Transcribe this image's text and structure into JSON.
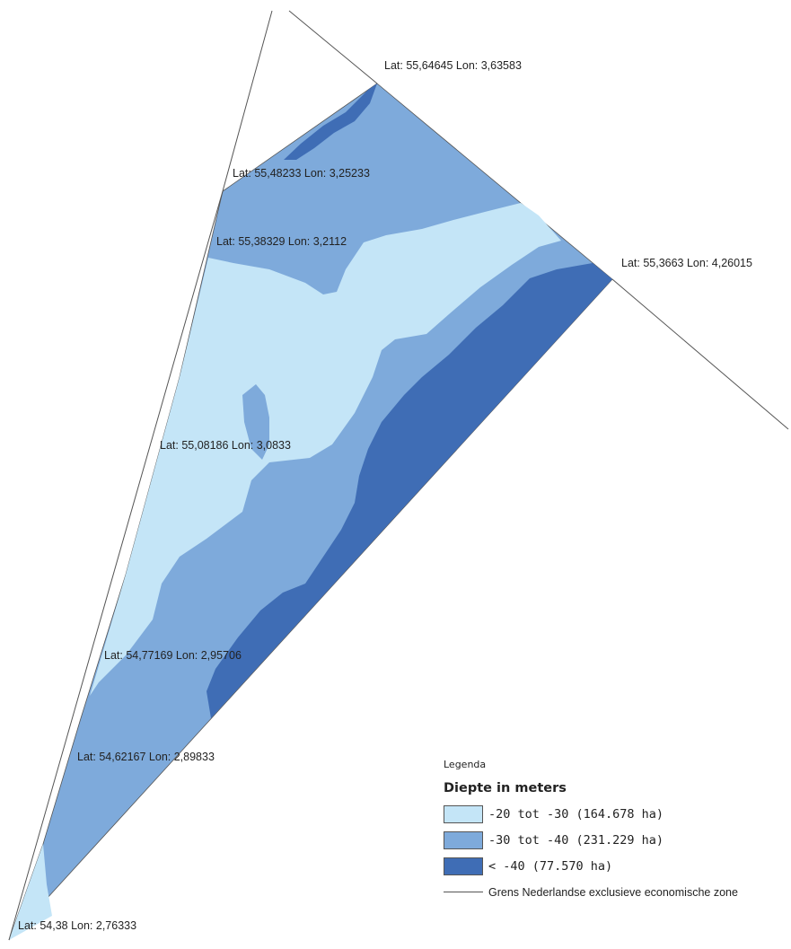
{
  "colors": {
    "class_1": "#c4e5f7",
    "class_2": "#7eaadb",
    "class_3": "#3f6db5",
    "boundary": "#555555"
  },
  "coordinates": [
    {
      "id": "c1",
      "text": "Lat: 55,64645 Lon: 3,63583"
    },
    {
      "id": "c2",
      "text": "Lat: 55,48233 Lon: 3,25233"
    },
    {
      "id": "c3",
      "text": "Lat: 55,38329 Lon: 3,2112"
    },
    {
      "id": "c4",
      "text": "Lat: 55,3663 Lon: 4,26015"
    },
    {
      "id": "c5",
      "text": "Lat: 55,08186 Lon: 3,0833"
    },
    {
      "id": "c6",
      "text": "Lat: 54,77169 Lon: 2,95706"
    },
    {
      "id": "c7",
      "text": "Lat: 54,62167 Lon: 2,89833"
    },
    {
      "id": "c8",
      "text": "Lat: 54,38 Lon: 2,76333"
    }
  ],
  "legend": {
    "title": "Legenda",
    "subtitle": "Diepte in meters",
    "items": [
      {
        "label": "-20 tot -30 (164.678 ha)",
        "color": "#c4e5f7"
      },
      {
        "label": "-30 tot -40 (231.229 ha)",
        "color": "#7eaadb"
      },
      {
        "label": "< -40 (77.570 ha)",
        "color": "#3f6db5"
      }
    ],
    "line_label": "Grens Nederlandse exclusieve economische zone"
  }
}
